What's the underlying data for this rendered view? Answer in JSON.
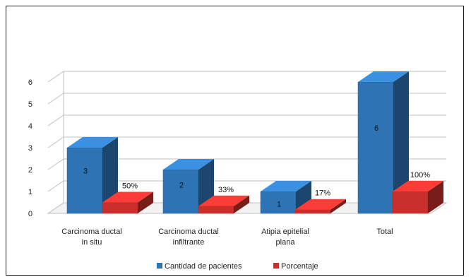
{
  "chart_data": {
    "type": "bar",
    "categories": [
      [
        "Carcinoma ductal",
        "in situ"
      ],
      [
        "Carcinoma ductal",
        "infiltrante"
      ],
      [
        "Atipia epitelial",
        "plana"
      ],
      [
        "Total"
      ]
    ],
    "series": [
      {
        "name": "Cantidad de pacientes",
        "color": "#2e74b5",
        "values": [
          3,
          2,
          1,
          6
        ],
        "labels": [
          "3",
          "2",
          "1",
          "6"
        ]
      },
      {
        "name": "Porcentaje",
        "color": "#c9302c",
        "values": [
          0.5,
          0.33,
          0.17,
          1.0
        ],
        "labels": [
          "50%",
          "33%",
          "17%",
          "100%"
        ]
      }
    ],
    "yticks": [
      "0",
      "1",
      "2",
      "3",
      "4",
      "5",
      "6"
    ],
    "ylim": [
      0,
      6
    ],
    "grid": true,
    "legend": "bottom",
    "style": "3d-clustered-column"
  }
}
